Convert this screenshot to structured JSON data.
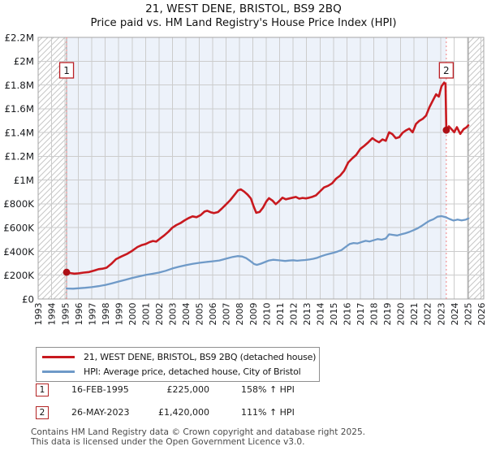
{
  "title": "21, WEST DENE, BRISTOL, BS9 2BQ",
  "subtitle": "Price paid vs. HM Land Registry's House Price Index (HPI)",
  "chart_data": {
    "type": "line",
    "units": "GBP thousands",
    "x_axis": {
      "min": 1993,
      "max": 2026.2,
      "ticks": [
        1993,
        1994,
        1995,
        1996,
        1997,
        1998,
        1999,
        2000,
        2001,
        2002,
        2003,
        2004,
        2005,
        2006,
        2007,
        2008,
        2009,
        2010,
        2011,
        2012,
        2013,
        2014,
        2015,
        2016,
        2017,
        2018,
        2019,
        2020,
        2021,
        2022,
        2023,
        2024,
        2025,
        2026
      ]
    },
    "y_axis": {
      "max": 2200,
      "step": 200,
      "ticks": [
        "£0",
        "£200K",
        "£400K",
        "£600K",
        "£800K",
        "£1M",
        "£1.2M",
        "£1.4M",
        "£1.6M",
        "£1.8M",
        "£2M",
        "£2.2M"
      ]
    },
    "grid": true,
    "legend_position": "bottom",
    "shaded_region": {
      "from": 1995.12,
      "to": 2023.41
    },
    "hatched_regions": [
      [
        1993,
        1995.12
      ],
      [
        2025.05,
        2026.6
      ]
    ],
    "colors": {
      "shade": "#edf2fa",
      "grid": "#cccccc",
      "border": "#a6a6a6",
      "hatch": "#c6c6c6",
      "sale_dash": "#f08282",
      "dot": "#ad1016",
      "marker_box": "#bb1f24"
    },
    "sales": [
      {
        "label": "1",
        "year": 1995.12,
        "value": 225
      },
      {
        "label": "2",
        "year": 2023.41,
        "value": 1420
      }
    ],
    "series": [
      {
        "name": "21, WEST DENE, BRISTOL, BS9 2BQ (detached house)",
        "color": "#c8191f",
        "points": [
          [
            1995.12,
            225
          ],
          [
            1995.4,
            218
          ],
          [
            1995.7,
            213
          ],
          [
            1996.0,
            216
          ],
          [
            1996.4,
            222
          ],
          [
            1996.8,
            227
          ],
          [
            1997.2,
            240
          ],
          [
            1997.5,
            251
          ],
          [
            1997.8,
            255
          ],
          [
            1998.1,
            263
          ],
          [
            1998.45,
            295
          ],
          [
            1998.8,
            335
          ],
          [
            1999.2,
            357
          ],
          [
            1999.6,
            378
          ],
          [
            2000.0,
            405
          ],
          [
            2000.4,
            437
          ],
          [
            2000.7,
            452
          ],
          [
            2001.0,
            462
          ],
          [
            2001.3,
            478
          ],
          [
            2001.55,
            488
          ],
          [
            2001.8,
            483
          ],
          [
            2002.1,
            510
          ],
          [
            2002.4,
            535
          ],
          [
            2002.7,
            565
          ],
          [
            2003.0,
            600
          ],
          [
            2003.3,
            622
          ],
          [
            2003.6,
            638
          ],
          [
            2003.9,
            660
          ],
          [
            2004.2,
            680
          ],
          [
            2004.5,
            695
          ],
          [
            2004.8,
            688
          ],
          [
            2005.1,
            705
          ],
          [
            2005.4,
            735
          ],
          [
            2005.6,
            742
          ],
          [
            2005.85,
            730
          ],
          [
            2006.1,
            722
          ],
          [
            2006.4,
            731
          ],
          [
            2006.7,
            762
          ],
          [
            2007.0,
            795
          ],
          [
            2007.3,
            830
          ],
          [
            2007.6,
            872
          ],
          [
            2007.9,
            915
          ],
          [
            2008.1,
            922
          ],
          [
            2008.35,
            903
          ],
          [
            2008.6,
            878
          ],
          [
            2008.85,
            845
          ],
          [
            2009.05,
            780
          ],
          [
            2009.25,
            725
          ],
          [
            2009.5,
            732
          ],
          [
            2009.75,
            768
          ],
          [
            2010.0,
            820
          ],
          [
            2010.2,
            848
          ],
          [
            2010.45,
            828
          ],
          [
            2010.7,
            797
          ],
          [
            2010.95,
            822
          ],
          [
            2011.2,
            852
          ],
          [
            2011.45,
            838
          ],
          [
            2011.7,
            845
          ],
          [
            2011.95,
            852
          ],
          [
            2012.2,
            858
          ],
          [
            2012.45,
            844
          ],
          [
            2012.7,
            850
          ],
          [
            2012.95,
            846
          ],
          [
            2013.2,
            852
          ],
          [
            2013.45,
            860
          ],
          [
            2013.7,
            872
          ],
          [
            2014.0,
            905
          ],
          [
            2014.3,
            938
          ],
          [
            2014.6,
            952
          ],
          [
            2014.9,
            972
          ],
          [
            2015.2,
            1012
          ],
          [
            2015.5,
            1038
          ],
          [
            2015.8,
            1078
          ],
          [
            2016.1,
            1148
          ],
          [
            2016.4,
            1182
          ],
          [
            2016.7,
            1212
          ],
          [
            2017.0,
            1262
          ],
          [
            2017.3,
            1288
          ],
          [
            2017.6,
            1318
          ],
          [
            2017.9,
            1352
          ],
          [
            2018.15,
            1332
          ],
          [
            2018.4,
            1318
          ],
          [
            2018.65,
            1342
          ],
          [
            2018.9,
            1330
          ],
          [
            2019.15,
            1402
          ],
          [
            2019.4,
            1385
          ],
          [
            2019.65,
            1352
          ],
          [
            2019.9,
            1360
          ],
          [
            2020.15,
            1398
          ],
          [
            2020.4,
            1418
          ],
          [
            2020.65,
            1432
          ],
          [
            2020.9,
            1402
          ],
          [
            2021.15,
            1472
          ],
          [
            2021.4,
            1498
          ],
          [
            2021.65,
            1515
          ],
          [
            2021.9,
            1542
          ],
          [
            2022.15,
            1612
          ],
          [
            2022.4,
            1668
          ],
          [
            2022.65,
            1722
          ],
          [
            2022.85,
            1702
          ],
          [
            2023.05,
            1788
          ],
          [
            2023.25,
            1820
          ],
          [
            2023.35,
            1808
          ],
          [
            2023.41,
            1420
          ],
          [
            2023.6,
            1452
          ],
          [
            2023.8,
            1428
          ],
          [
            2024.0,
            1402
          ],
          [
            2024.2,
            1445
          ],
          [
            2024.45,
            1388
          ],
          [
            2024.7,
            1428
          ],
          [
            2024.9,
            1442
          ],
          [
            2025.05,
            1460
          ]
        ]
      },
      {
        "name": "HPI: Average price, detached house, City of Bristol",
        "color": "#6f9ac8",
        "points": [
          [
            1995.12,
            88
          ],
          [
            1995.6,
            87
          ],
          [
            1996.0,
            90
          ],
          [
            1996.5,
            94
          ],
          [
            1997.0,
            100
          ],
          [
            1997.5,
            108
          ],
          [
            1998.0,
            118
          ],
          [
            1998.5,
            132
          ],
          [
            1999.0,
            147
          ],
          [
            1999.5,
            161
          ],
          [
            2000.0,
            177
          ],
          [
            2000.5,
            190
          ],
          [
            2001.0,
            202
          ],
          [
            2001.5,
            212
          ],
          [
            2002.0,
            222
          ],
          [
            2002.5,
            237
          ],
          [
            2003.0,
            257
          ],
          [
            2003.5,
            271
          ],
          [
            2004.0,
            284
          ],
          [
            2004.5,
            295
          ],
          [
            2005.0,
            304
          ],
          [
            2005.5,
            311
          ],
          [
            2006.0,
            317
          ],
          [
            2006.5,
            324
          ],
          [
            2007.0,
            339
          ],
          [
            2007.5,
            354
          ],
          [
            2007.85,
            361
          ],
          [
            2008.2,
            357
          ],
          [
            2008.5,
            344
          ],
          [
            2008.8,
            320
          ],
          [
            2009.1,
            294
          ],
          [
            2009.3,
            287
          ],
          [
            2009.6,
            297
          ],
          [
            2009.9,
            311
          ],
          [
            2010.2,
            324
          ],
          [
            2010.5,
            330
          ],
          [
            2010.8,
            327
          ],
          [
            2011.1,
            324
          ],
          [
            2011.4,
            320
          ],
          [
            2011.7,
            323
          ],
          [
            2012.0,
            326
          ],
          [
            2012.3,
            322
          ],
          [
            2012.6,
            325
          ],
          [
            2012.9,
            328
          ],
          [
            2013.2,
            332
          ],
          [
            2013.5,
            338
          ],
          [
            2013.8,
            347
          ],
          [
            2014.1,
            360
          ],
          [
            2014.4,
            371
          ],
          [
            2014.7,
            380
          ],
          [
            2015.0,
            389
          ],
          [
            2015.3,
            399
          ],
          [
            2015.6,
            411
          ],
          [
            2015.9,
            437
          ],
          [
            2016.2,
            462
          ],
          [
            2016.5,
            471
          ],
          [
            2016.8,
            467
          ],
          [
            2017.1,
            479
          ],
          [
            2017.4,
            489
          ],
          [
            2017.7,
            484
          ],
          [
            2018.0,
            494
          ],
          [
            2018.3,
            504
          ],
          [
            2018.6,
            499
          ],
          [
            2018.9,
            509
          ],
          [
            2019.15,
            544
          ],
          [
            2019.45,
            539
          ],
          [
            2019.75,
            534
          ],
          [
            2020.05,
            544
          ],
          [
            2020.35,
            553
          ],
          [
            2020.65,
            564
          ],
          [
            2020.95,
            578
          ],
          [
            2021.25,
            593
          ],
          [
            2021.55,
            613
          ],
          [
            2021.85,
            636
          ],
          [
            2022.15,
            657
          ],
          [
            2022.45,
            671
          ],
          [
            2022.75,
            692
          ],
          [
            2023.05,
            697
          ],
          [
            2023.35,
            689
          ],
          [
            2023.65,
            673
          ],
          [
            2023.95,
            660
          ],
          [
            2024.25,
            668
          ],
          [
            2024.55,
            661
          ],
          [
            2024.85,
            667
          ],
          [
            2025.05,
            678
          ]
        ]
      }
    ]
  },
  "legend": [
    {
      "label": "21, WEST DENE, BRISTOL, BS9 2BQ (detached house)"
    },
    {
      "label": "HPI: Average price, detached house, City of Bristol"
    }
  ],
  "annotations": [
    {
      "num": "1",
      "date": "16-FEB-1995",
      "price": "£225,000",
      "vs_hpi": "158% ↑ HPI"
    },
    {
      "num": "2",
      "date": "26-MAY-2023",
      "price": "£1,420,000",
      "vs_hpi": "111% ↑ HPI"
    }
  ],
  "footer": {
    "line1": "Contains HM Land Registry data © Crown copyright and database right 2025.",
    "line2": "This data is licensed under the Open Government Licence v3.0."
  }
}
